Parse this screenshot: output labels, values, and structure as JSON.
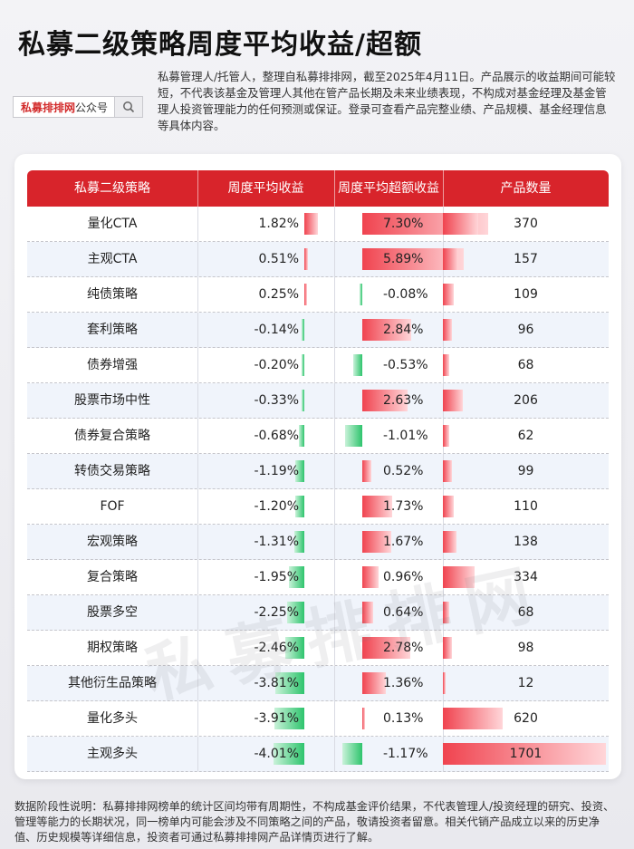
{
  "title": "私募二级策略周度平均收益/超额",
  "search_box": {
    "label_red": "私募排排网",
    "label_plain": "公众号",
    "icon": "search-icon"
  },
  "notice": "私募管理人/托管人，整理自私募排排网，截至2025年4月11日。产品展示的收益期间可能较短，不代表该基金及管理人其他在管产品长期及未来业绩表现，不构成对基金经理及基金管理人投资管理能力的任何预测或保证。登录可查看产品完整业绩、产品规模、基金经理信息等具体内容。",
  "watermark": "私募排排网",
  "footer": "数据阶段性说明：私募排排网榜单的统计区间均带有周期性，不构成基金评价结果，不代表管理人/投资经理的研究、投资、管理等能力的长期状况，同一榜单内可能会涉及不同策略之间的产品，敬请投资者留意。相关代销产品成立以来的历史净值、历史规模等详细信息，投资者可通过私募排排网产品详情页进行了解。",
  "colors": {
    "header": "#d8242b",
    "positive": "#f0434f",
    "negative": "#2ec46d",
    "count_bar": "#f0434f"
  },
  "chart_data": {
    "type": "table",
    "columns": [
      "私募二级策略",
      "周度平均收益",
      "周度平均超额收益",
      "产品数量"
    ],
    "rows": [
      {
        "name": "量化CTA",
        "ret": 1.82,
        "ret_label": "1.82%",
        "excess": 7.3,
        "excess_label": "7.30%",
        "count": 370
      },
      {
        "name": "主观CTA",
        "ret": 0.51,
        "ret_label": "0.51%",
        "excess": 5.89,
        "excess_label": "5.89%",
        "count": 157
      },
      {
        "name": "纯债策略",
        "ret": 0.25,
        "ret_label": "0.25%",
        "excess": -0.08,
        "excess_label": "-0.08%",
        "count": 109
      },
      {
        "name": "套利策略",
        "ret": -0.14,
        "ret_label": "-0.14%",
        "excess": 2.84,
        "excess_label": "2.84%",
        "count": 96
      },
      {
        "name": "债券增强",
        "ret": -0.2,
        "ret_label": "-0.20%",
        "excess": -0.53,
        "excess_label": "-0.53%",
        "count": 68
      },
      {
        "name": "股票市场中性",
        "ret": -0.33,
        "ret_label": "-0.33%",
        "excess": 2.63,
        "excess_label": "2.63%",
        "count": 206
      },
      {
        "name": "债券复合策略",
        "ret": -0.68,
        "ret_label": "-0.68%",
        "excess": -1.01,
        "excess_label": "-1.01%",
        "count": 62
      },
      {
        "name": "转债交易策略",
        "ret": -1.19,
        "ret_label": "-1.19%",
        "excess": 0.52,
        "excess_label": "0.52%",
        "count": 99
      },
      {
        "name": "FOF",
        "ret": -1.2,
        "ret_label": "-1.20%",
        "excess": 1.73,
        "excess_label": "1.73%",
        "count": 110
      },
      {
        "name": "宏观策略",
        "ret": -1.31,
        "ret_label": "-1.31%",
        "excess": 1.67,
        "excess_label": "1.67%",
        "count": 138
      },
      {
        "name": "复合策略",
        "ret": -1.95,
        "ret_label": "-1.95%",
        "excess": 0.96,
        "excess_label": "0.96%",
        "count": 334
      },
      {
        "name": "股票多空",
        "ret": -2.25,
        "ret_label": "-2.25%",
        "excess": 0.64,
        "excess_label": "0.64%",
        "count": 68
      },
      {
        "name": "期权策略",
        "ret": -2.46,
        "ret_label": "-2.46%",
        "excess": 2.78,
        "excess_label": "2.78%",
        "count": 98
      },
      {
        "name": "其他衍生品策略",
        "ret": -3.81,
        "ret_label": "-3.81%",
        "excess": 1.36,
        "excess_label": "1.36%",
        "count": 12
      },
      {
        "name": "量化多头",
        "ret": -3.91,
        "ret_label": "-3.91%",
        "excess": 0.13,
        "excess_label": "0.13%",
        "count": 620
      },
      {
        "name": "主观多头",
        "ret": -4.01,
        "ret_label": "-4.01%",
        "excess": -1.17,
        "excess_label": "-1.17%",
        "count": 1701
      }
    ]
  }
}
